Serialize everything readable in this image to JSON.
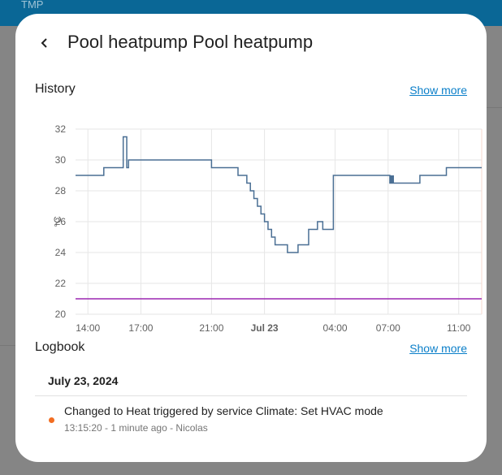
{
  "background": {
    "header_text": "TMP"
  },
  "dialog": {
    "title": "Pool heatpump Pool heatpump"
  },
  "history": {
    "title": "History",
    "show_more": "Show more"
  },
  "logbook": {
    "title": "Logbook",
    "show_more": "Show more",
    "date": "July 23, 2024",
    "entries": [
      {
        "message": "Changed to Heat triggered by service Climate: Set HVAC mode",
        "meta": "13:15:20 - 1 minute ago - Nicolas",
        "dot_color": "#f26d21"
      }
    ]
  },
  "colors": {
    "current_temp_line": "#4a6f94",
    "target_line": "#9c27b0",
    "link": "#0b7fc9"
  },
  "chart_data": {
    "type": "line",
    "ylabel": "°C",
    "ylim": [
      20,
      32
    ],
    "yticks": [
      20,
      22,
      24,
      26,
      28,
      30,
      32
    ],
    "xticks": [
      "14:00",
      "17:00",
      "21:00",
      "Jul 23",
      "04:00",
      "07:00",
      "11:00"
    ],
    "x_hours": [
      14,
      17,
      21,
      24,
      28,
      31,
      35
    ],
    "xlim_hours": [
      13.3,
      36.3
    ],
    "grid": true,
    "series": [
      {
        "color": "#4a6f94",
        "step": true,
        "x_hours": [
          13.3,
          14.9,
          16.0,
          16.2,
          16.3,
          17.0,
          21.0,
          22.5,
          23.0,
          23.2,
          23.4,
          23.6,
          23.8,
          24.0,
          24.2,
          24.4,
          24.6,
          25.0,
          25.3,
          25.6,
          25.9,
          26.5,
          27.0,
          27.3,
          27.9,
          28.3,
          30.5,
          31.1,
          31.4,
          32.8,
          34.3,
          36.3
        ],
        "values": [
          29,
          29.5,
          31.5,
          29.5,
          30,
          30,
          29.5,
          29,
          28.5,
          28,
          27.5,
          27,
          26.5,
          26,
          25.5,
          25,
          24.5,
          24.5,
          24,
          24,
          24.5,
          25.5,
          26,
          25.5,
          29,
          29,
          29,
          28.5,
          28.5,
          29,
          29.5,
          29.5
        ]
      },
      {
        "color": "#9c27b0",
        "step": true,
        "x_hours": [
          13.3,
          36.3
        ],
        "values": [
          21,
          21
        ]
      }
    ]
  }
}
